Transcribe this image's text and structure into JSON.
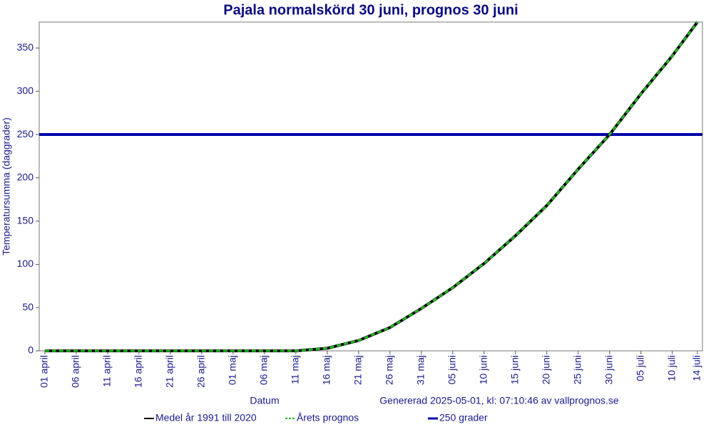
{
  "chart_data": {
    "type": "line",
    "title": "Pajala normalskörd 30 juni, prognos 30 juni",
    "x_label": "Datum",
    "y_label": "Temperatursumma (daggrader)",
    "annotation": "Genererad 2025-05-01, kl: 07:10:46 av vallprognos.se",
    "x": [
      0,
      5,
      10,
      15,
      20,
      25,
      30,
      35,
      40,
      45,
      50,
      55,
      60,
      65,
      70,
      75,
      80,
      85,
      90,
      95,
      100,
      104
    ],
    "xlim": [
      -0.9,
      104.8
    ],
    "xticks": [
      {
        "value": 0,
        "label": "01 april"
      },
      {
        "value": 5,
        "label": "06 april"
      },
      {
        "value": 10,
        "label": "11 april"
      },
      {
        "value": 15,
        "label": "16 april"
      },
      {
        "value": 20,
        "label": "21 april"
      },
      {
        "value": 25,
        "label": "26 april"
      },
      {
        "value": 30,
        "label": "01 maj"
      },
      {
        "value": 35,
        "label": "06 maj"
      },
      {
        "value": 40,
        "label": "11 maj"
      },
      {
        "value": 45,
        "label": "16 maj"
      },
      {
        "value": 50,
        "label": "21 maj"
      },
      {
        "value": 55,
        "label": "26 maj"
      },
      {
        "value": 60,
        "label": "31 maj"
      },
      {
        "value": 65,
        "label": "05 juni"
      },
      {
        "value": 70,
        "label": "10 juni"
      },
      {
        "value": 75,
        "label": "15 juni"
      },
      {
        "value": 80,
        "label": "20 juni"
      },
      {
        "value": 85,
        "label": "25 juni"
      },
      {
        "value": 90,
        "label": "30 juni"
      },
      {
        "value": 95,
        "label": "05 juli"
      },
      {
        "value": 100,
        "label": "10 juli"
      },
      {
        "value": 104,
        "label": "14 juli"
      }
    ],
    "ylim": [
      0,
      380
    ],
    "yticks": [
      0,
      50,
      100,
      150,
      200,
      250,
      300,
      350
    ],
    "series": [
      {
        "name": "Medel år 1991 till 2020",
        "color": "#000000",
        "dash": false,
        "values": [
          0,
          0,
          0,
          0,
          0,
          0,
          0,
          0,
          0,
          3,
          12,
          27,
          49,
          73,
          101,
          133,
          168,
          210,
          250,
          297,
          341,
          380
        ]
      },
      {
        "name": "Årets prognos",
        "color": "#22bb22",
        "dash": true,
        "values": [
          0,
          0,
          0,
          0,
          0,
          0,
          0,
          0,
          0,
          3,
          12,
          27,
          49,
          73,
          101,
          133,
          168,
          210,
          250,
          297,
          341,
          380
        ]
      }
    ],
    "reference_lines": [
      {
        "name": "250 grader",
        "color": "#0000aa",
        "value": 250
      }
    ]
  }
}
